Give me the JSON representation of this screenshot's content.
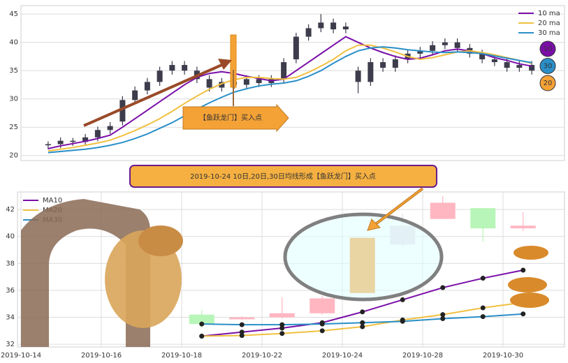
{
  "chart_data": [
    {
      "type": "candlestick",
      "color": "#3c3c4c",
      "ylim": [
        19.1,
        46.5
      ],
      "yticks": [
        20,
        25,
        30,
        35,
        40,
        45
      ],
      "grid": true,
      "legend": "upper right",
      "open": [
        21.8,
        22.0,
        22.6,
        22.4,
        23.2,
        24.5,
        26.0,
        29.8,
        31.5,
        33.0,
        35.0,
        36.0,
        35.0,
        33.5,
        32.0,
        33.0,
        32.5,
        33.5,
        32.8,
        33.5,
        37.0,
        41.0,
        42.5,
        43.5,
        42.3,
        35.0,
        33.0,
        36.5,
        35.5,
        37.0,
        38.0,
        38.5,
        39.5,
        40.0,
        39.0,
        38.0,
        37.0,
        36.5,
        35.5,
        36.0
      ],
      "close": [
        22.0,
        22.6,
        22.4,
        23.2,
        24.5,
        25.2,
        29.8,
        31.5,
        33.0,
        35.0,
        36.0,
        35.0,
        33.5,
        32.0,
        33.0,
        32.5,
        33.5,
        32.8,
        33.5,
        36.5,
        41.0,
        42.5,
        43.5,
        42.3,
        42.8,
        33.0,
        36.5,
        35.5,
        37.0,
        38.0,
        38.5,
        39.5,
        40.0,
        39.0,
        38.0,
        37.0,
        36.5,
        35.5,
        36.0,
        35.0
      ],
      "high": [
        22.5,
        23.2,
        23.1,
        23.8,
        25.1,
        25.9,
        30.5,
        32.2,
        33.7,
        35.7,
        36.7,
        36.7,
        35.7,
        34.2,
        33.7,
        33.7,
        34.2,
        34.2,
        34.2,
        37.2,
        41.7,
        43.2,
        45.0,
        44.2,
        43.5,
        35.7,
        37.2,
        37.2,
        37.7,
        38.7,
        39.2,
        40.2,
        40.7,
        40.7,
        39.7,
        38.7,
        37.7,
        37.2,
        36.7,
        36.7
      ],
      "low": [
        21.1,
        21.3,
        21.7,
        21.7,
        22.5,
        23.8,
        25.3,
        29.1,
        30.8,
        32.3,
        34.3,
        34.3,
        32.8,
        31.3,
        31.3,
        31.8,
        31.8,
        32.1,
        32.1,
        32.8,
        36.3,
        40.3,
        41.8,
        41.6,
        41.6,
        31.0,
        32.3,
        34.8,
        34.8,
        36.3,
        37.3,
        37.8,
        38.8,
        38.3,
        37.3,
        36.3,
        35.8,
        34.8,
        34.8,
        34.3
      ],
      "series": [
        {
          "name": "10 ma",
          "color": "#7a0fa8",
          "values": [
            21.2,
            21.7,
            22.1,
            22.5,
            23.0,
            23.6,
            25.0,
            26.5,
            28.0,
            29.5,
            31.0,
            32.5,
            33.8,
            34.5,
            34.8,
            34.5,
            34.0,
            33.6,
            33.2,
            33.5,
            35.0,
            36.5,
            38.0,
            39.5,
            41.0,
            40.0,
            39.0,
            38.2,
            37.5,
            37.0,
            37.2,
            37.8,
            38.5,
            38.8,
            38.5,
            38.0,
            37.3,
            36.8,
            36.2,
            35.8
          ]
        },
        {
          "name": "20 ma",
          "color": "#f0c040",
          "values": [
            20.8,
            21.1,
            21.4,
            21.8,
            22.2,
            22.7,
            23.5,
            24.4,
            25.4,
            26.5,
            27.8,
            29.2,
            30.5,
            31.7,
            32.7,
            33.4,
            33.8,
            33.8,
            33.6,
            33.5,
            33.8,
            34.7,
            35.8,
            37.0,
            38.5,
            39.5,
            39.5,
            39.0,
            38.3,
            37.5,
            37.0,
            37.3,
            37.8,
            38.3,
            38.5,
            38.2,
            37.8,
            37.3,
            36.8,
            36.3
          ]
        },
        {
          "name": "30 ma",
          "color": "#2a8fc8",
          "values": [
            20.5,
            20.7,
            20.9,
            21.1,
            21.4,
            21.8,
            22.3,
            23.0,
            23.8,
            24.8,
            25.8,
            27.0,
            28.2,
            29.3,
            30.3,
            31.2,
            31.8,
            32.3,
            32.6,
            32.8,
            33.2,
            34.0,
            35.0,
            36.3,
            37.5,
            38.5,
            39.0,
            39.2,
            39.0,
            38.7,
            38.5,
            38.3,
            38.2,
            38.3,
            38.2,
            38.0,
            37.6,
            37.2,
            36.8,
            36.4
          ]
        }
      ],
      "annotation": "【鱼跃龙门】买入点",
      "badges": [
        "10",
        "30",
        "20"
      ]
    },
    {
      "type": "candlestick",
      "title": "2019-10-24 10日,20日,30日均线形成【鱼跃龙门】买入点",
      "categories": [
        "2019-10-14",
        null,
        "2019-10-16",
        null,
        "2019-10-18",
        null,
        "2019-10-22",
        null,
        "2019-10-24",
        null,
        "2019-10-28",
        null,
        "2019-10-30",
        null
      ],
      "ylim": [
        31.8,
        43.3
      ],
      "yticks": [
        32,
        34,
        36,
        38,
        40,
        42
      ],
      "grid": true,
      "legend": "upper left",
      "open": [
        null,
        null,
        null,
        null,
        34.2,
        33.85,
        34.0,
        34.3,
        35.8,
        39.4,
        41.3,
        42.1,
        40.6,
        null
      ],
      "close": [
        null,
        null,
        null,
        null,
        33.5,
        34.0,
        34.3,
        35.4,
        39.9,
        40.8,
        42.5,
        40.6,
        40.8,
        null
      ],
      "high": [
        null,
        null,
        null,
        null,
        34.5,
        34.1,
        35.5,
        35.6,
        39.9,
        41.7,
        43.0,
        42.1,
        41.8,
        null
      ],
      "low": [
        null,
        null,
        null,
        null,
        33.2,
        33.8,
        33.9,
        34.2,
        35.8,
        39.2,
        41.3,
        39.6,
        40.4,
        null
      ],
      "candle_colors": [
        null,
        null,
        null,
        null,
        "#b8f5b8",
        "#ffb6c1",
        "#ffb6c1",
        "#ffb6c1",
        "#f4a236",
        "#e6e0ea",
        "#ffb6c1",
        "#b8f5b8",
        "#ffb6c1",
        null
      ],
      "series": [
        {
          "name": "MA10",
          "color": "#7a0fa8",
          "values": [
            null,
            null,
            null,
            null,
            32.6,
            32.9,
            33.2,
            33.6,
            34.4,
            35.3,
            36.2,
            36.9,
            37.5,
            null
          ]
        },
        {
          "name": "MA20",
          "color": "#f0c040",
          "values": [
            null,
            null,
            null,
            null,
            32.6,
            32.65,
            32.8,
            33.0,
            33.3,
            33.8,
            34.2,
            34.7,
            35.1,
            null
          ]
        },
        {
          "name": "MA30",
          "color": "#2a8fc8",
          "values": [
            null,
            null,
            null,
            null,
            33.5,
            33.45,
            33.45,
            33.5,
            33.6,
            33.7,
            33.9,
            34.05,
            34.25,
            null
          ]
        }
      ]
    }
  ]
}
